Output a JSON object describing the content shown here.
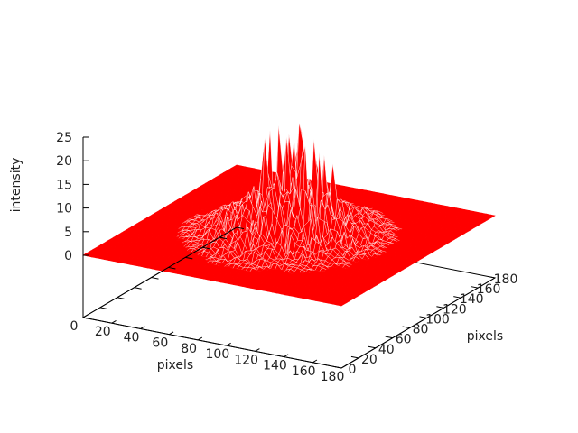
{
  "chart_data": {
    "type": "surface",
    "title": "",
    "xlabel": "pixels",
    "ylabel": "pixels",
    "zlabel": "intensity",
    "xlim": [
      0,
      180
    ],
    "ylim": [
      0,
      180
    ],
    "zlim": [
      0,
      25
    ],
    "x_ticks": [
      "0",
      "20",
      "40",
      "60",
      "80",
      "100",
      "120",
      "140",
      "160",
      "180"
    ],
    "y_ticks": [
      "0",
      "20",
      "40",
      "60",
      "80",
      "100",
      "120",
      "140",
      "160",
      "180"
    ],
    "z_ticks": [
      "0",
      "5",
      "10",
      "15",
      "20",
      "25"
    ],
    "surface_color": "#ff0000",
    "mesh_line_color": "#ffffff",
    "peak_max": 25,
    "peak_region_center": [
      90,
      90
    ],
    "grid": false,
    "legend": "none"
  }
}
